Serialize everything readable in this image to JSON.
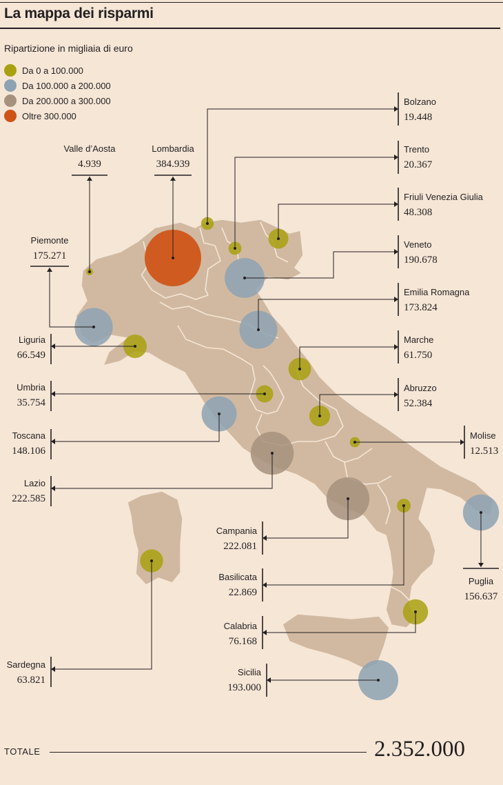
{
  "title": "La mappa dei risparmi",
  "subtitle": "Ripartizione in migliaia di euro",
  "legend": [
    {
      "label": "Da 0 a 100.000",
      "color": "#a9a010"
    },
    {
      "label": "Da 100.000 a 200.000",
      "color": "#8da2b3"
    },
    {
      "label": "Da 200.000 a 300.000",
      "color": "#a6917e"
    },
    {
      "label": "Oltre 300.000",
      "color": "#cf5216"
    }
  ],
  "total_label": "TOTALE",
  "total_value": "2.352.000",
  "chart_data": {
    "type": "bubble-map",
    "unit": "migliaia di euro",
    "categories": [
      {
        "name": "Da 0 a 100.000",
        "min": 0,
        "max": 100000
      },
      {
        "name": "Da 100.000 a 200.000",
        "min": 100000,
        "max": 200000
      },
      {
        "name": "Da 200.000 a 300.000",
        "min": 200000,
        "max": 300000
      },
      {
        "name": "Oltre 300.000",
        "min": 300000
      }
    ],
    "regions": [
      {
        "name": "Valle d’Aosta",
        "label": "4.939",
        "value": 4939
      },
      {
        "name": "Lombardia",
        "label": "384.939",
        "value": 384939
      },
      {
        "name": "Piemonte",
        "label": "175.271",
        "value": 175271
      },
      {
        "name": "Liguria",
        "label": "66.549",
        "value": 66549
      },
      {
        "name": "Umbria",
        "label": "35.754",
        "value": 35754
      },
      {
        "name": "Toscana",
        "label": "148.106",
        "value": 148106
      },
      {
        "name": "Lazio",
        "label": "222.585",
        "value": 222585
      },
      {
        "name": "Sardegna",
        "label": "63.821",
        "value": 63821
      },
      {
        "name": "Bolzano",
        "label": "19.448",
        "value": 19448
      },
      {
        "name": "Trento",
        "label": "20.367",
        "value": 20367
      },
      {
        "name": "Friuli Venezia Giulia",
        "label": "48.308",
        "value": 48308
      },
      {
        "name": "Veneto",
        "label": "190.678",
        "value": 190678
      },
      {
        "name": "Emilia Romagna",
        "label": "173.824",
        "value": 173824
      },
      {
        "name": "Marche",
        "label": "61.750",
        "value": 61750
      },
      {
        "name": "Abruzzo",
        "label": "52.384",
        "value": 52384
      },
      {
        "name": "Molise",
        "label": "12.513",
        "value": 12513
      },
      {
        "name": "Puglia",
        "label": "156.637",
        "value": 156637
      },
      {
        "name": "Campania",
        "label": "222.081",
        "value": 222081
      },
      {
        "name": "Basilicata",
        "label": "22.869",
        "value": 22869
      },
      {
        "name": "Calabria",
        "label": "76.168",
        "value": 76168
      },
      {
        "name": "Sicilia",
        "label": "193.000",
        "value": 193000
      }
    ],
    "total": 2352000
  }
}
